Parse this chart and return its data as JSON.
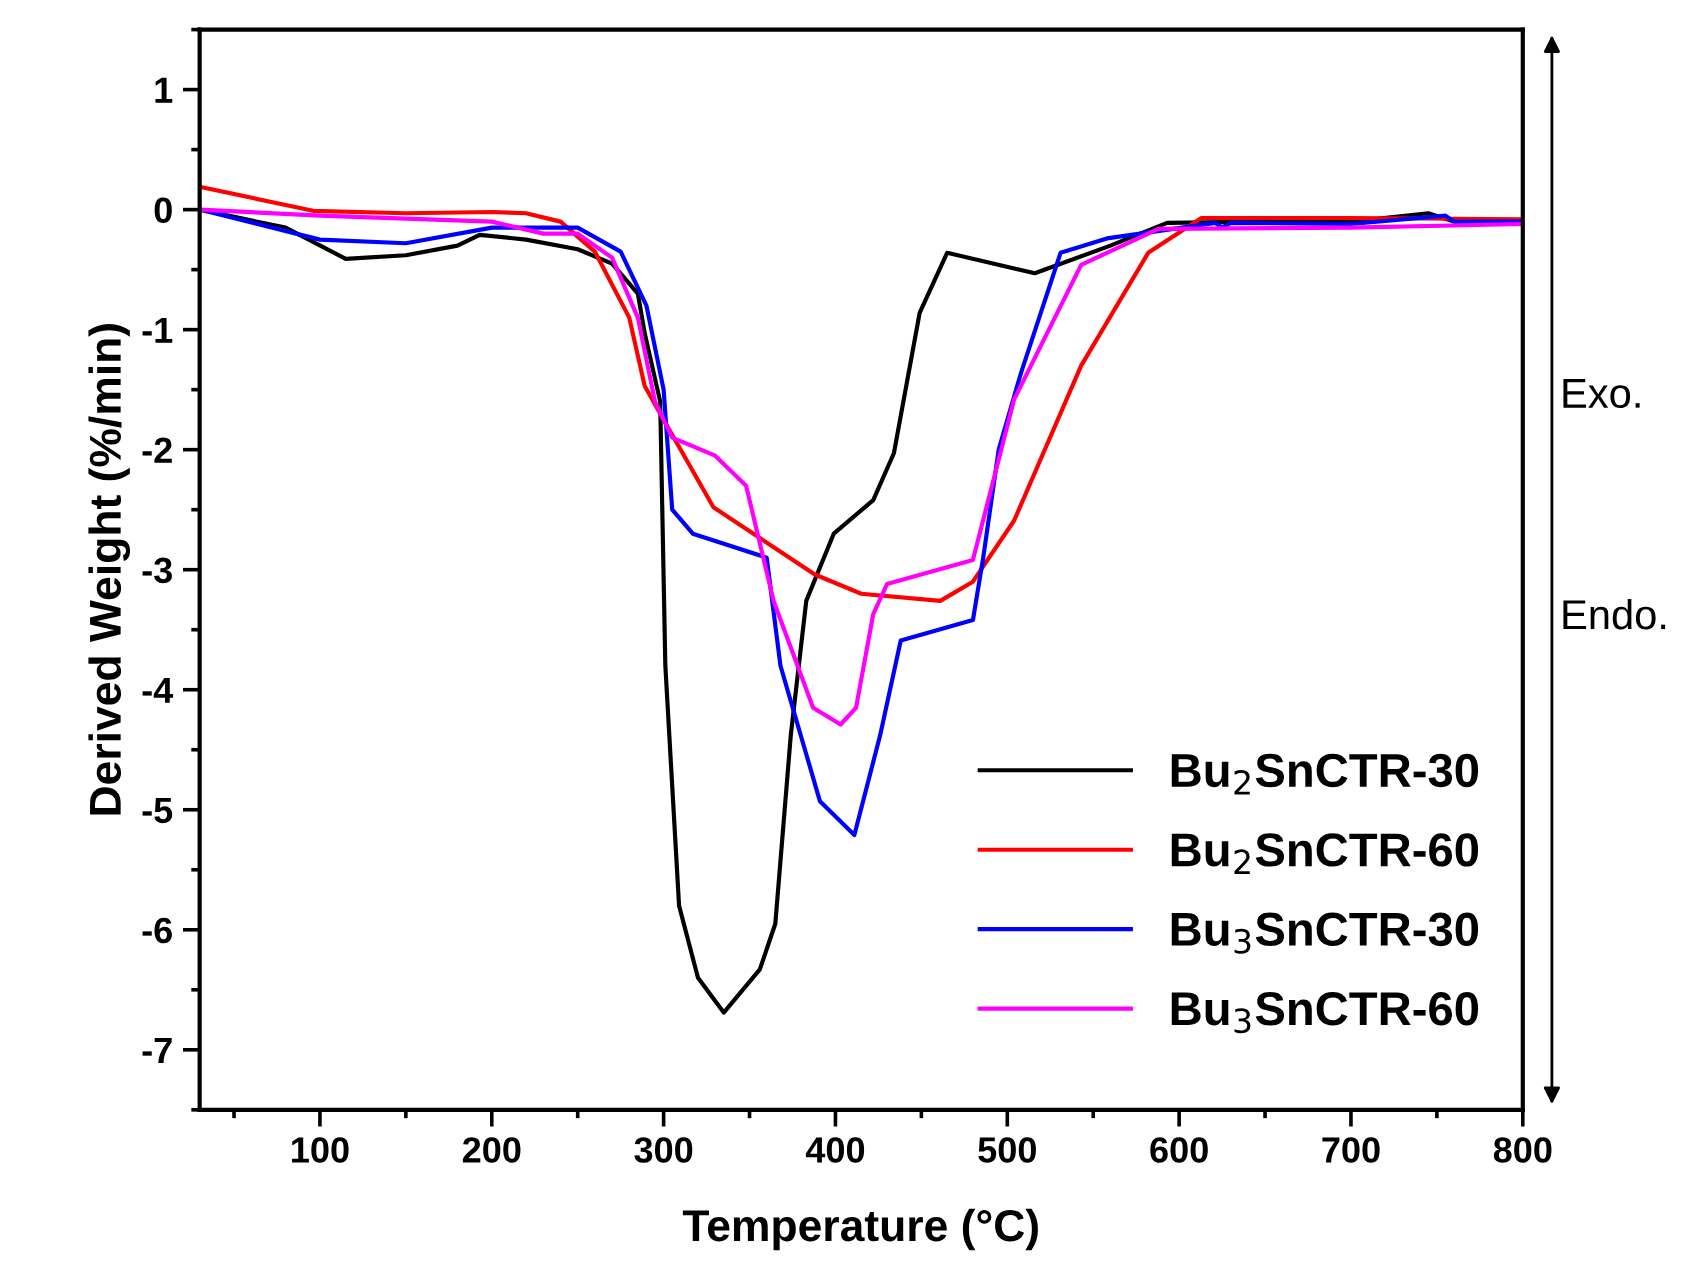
{
  "chart_data": {
    "type": "line",
    "xlabel": "Temperature (°C)",
    "ylabel": "Derived Weight (%/min)",
    "xlim": [
      30,
      800
    ],
    "ylim": [
      -7.5,
      1.5
    ],
    "xticks": [
      100,
      200,
      300,
      400,
      500,
      600,
      700,
      800
    ],
    "yticks": [
      -7,
      -6,
      -5,
      -4,
      -3,
      -2,
      -1,
      0,
      1
    ],
    "grid": false,
    "legend": "bottom right",
    "line_style": "solid",
    "marker": "none",
    "annotations": [
      "Exo.",
      "Endo."
    ],
    "series": [
      {
        "name": "Bu$_{2}$SnCTR-30",
        "color": "#000000",
        "x": [
          30,
          80,
          115,
          150,
          180,
          193,
          220,
          250,
          270,
          285,
          289,
          298,
          301,
          309,
          320,
          335,
          356,
          365,
          374,
          383,
          399,
          422,
          434,
          449,
          465,
          516,
          560,
          593,
          650,
          700,
          745,
          760,
          800
        ],
        "values": [
          0,
          -0.15,
          -0.41,
          -0.38,
          -0.3,
          -0.21,
          -0.25,
          -0.33,
          -0.45,
          -0.7,
          -1.03,
          -1.6,
          -3.8,
          -5.8,
          -6.4,
          -6.69,
          -6.33,
          -5.95,
          -4.38,
          -3.26,
          -2.7,
          -2.42,
          -2.03,
          -0.86,
          -0.36,
          -0.53,
          -0.3,
          -0.11,
          -0.1,
          -0.1,
          -0.03,
          -0.1,
          -0.1
        ]
      },
      {
        "name": "Bu$_{2}$SnCTR-60",
        "color": "#ff0000",
        "x": [
          30,
          96,
          150,
          200,
          220,
          240,
          260,
          280,
          289,
          300,
          329,
          388,
          415,
          461,
          480,
          504,
          543,
          582,
          613,
          700,
          800
        ],
        "values": [
          0.19,
          -0.01,
          -0.03,
          -0.02,
          -0.03,
          -0.1,
          -0.35,
          -0.9,
          -1.47,
          -1.75,
          -2.48,
          -3.04,
          -3.2,
          -3.26,
          -3.1,
          -2.59,
          -1.3,
          -0.36,
          -0.07,
          -0.07,
          -0.08
        ]
      },
      {
        "name": "Bu$_{3}$SnCTR-30",
        "color": "#0000ff",
        "x": [
          30,
          100,
          150,
          200,
          250,
          275,
          290,
          300,
          305,
          317,
          360,
          368,
          391,
          411,
          426,
          438,
          480,
          486,
          495,
          508,
          531,
          558,
          621,
          625,
          630,
          700,
          755,
          760,
          765,
          800
        ],
        "values": [
          0,
          -0.25,
          -0.28,
          -0.15,
          -0.15,
          -0.35,
          -0.8,
          -1.5,
          -2.5,
          -2.7,
          -2.9,
          -3.8,
          -4.93,
          -5.21,
          -4.38,
          -3.59,
          -3.42,
          -2.9,
          -2.0,
          -1.36,
          -0.36,
          -0.24,
          -0.11,
          -0.15,
          -0.11,
          -0.12,
          -0.05,
          -0.1,
          -0.1,
          -0.1
        ]
      },
      {
        "name": "Bu$_{3}$SnCTR-60",
        "color": "#ff00ff",
        "x": [
          30,
          100,
          200,
          230,
          250,
          270,
          285,
          295,
          305,
          330,
          348,
          364,
          387,
          403,
          412,
          422,
          430,
          480,
          504,
          543,
          588,
          700,
          800
        ],
        "values": [
          0,
          -0.05,
          -0.1,
          -0.2,
          -0.2,
          -0.4,
          -0.9,
          -1.6,
          -1.9,
          -2.05,
          -2.3,
          -3.26,
          -4.15,
          -4.29,
          -4.15,
          -3.37,
          -3.12,
          -2.92,
          -1.58,
          -0.46,
          -0.16,
          -0.15,
          -0.12
        ]
      }
    ]
  }
}
